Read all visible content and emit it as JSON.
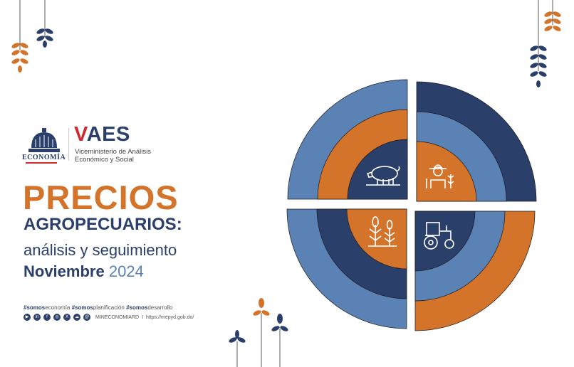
{
  "logo": {
    "ministry": "ECONOMÍA",
    "acronym_v": "V",
    "acronym_rest": "AES",
    "subtitle_line1": "Viceministerio de Análisis",
    "subtitle_line2": "Económico y Social"
  },
  "title": {
    "line1": "PRECIOS",
    "line2": "AGROPECUARIOS:",
    "line3": "análisis y seguimiento",
    "month": "Noviembre",
    "year": "2024"
  },
  "hashtags": [
    {
      "bold": "#somos",
      "rest": "economía"
    },
    {
      "bold": "#somos",
      "rest": "planificación"
    },
    {
      "bold": "#somos",
      "rest": "desarrollo"
    }
  ],
  "social": {
    "icons": [
      "youtube-icon",
      "linkedin-icon",
      "facebook-icon",
      "instagram-icon",
      "x-icon",
      "soundcloud-icon",
      "threads-icon"
    ],
    "handle": "MINECONOMIARD",
    "separator": "I",
    "url": "https://mepyd.gob.do/"
  },
  "graphic": {
    "quadrant_icons": [
      "pig-icon",
      "farmer-icon",
      "corn-icon",
      "tractor-icon"
    ]
  },
  "colors": {
    "dark_blue": "#2b3f6b",
    "light_blue": "#5b82b4",
    "orange": "#d4732a",
    "red": "#d0282e"
  }
}
